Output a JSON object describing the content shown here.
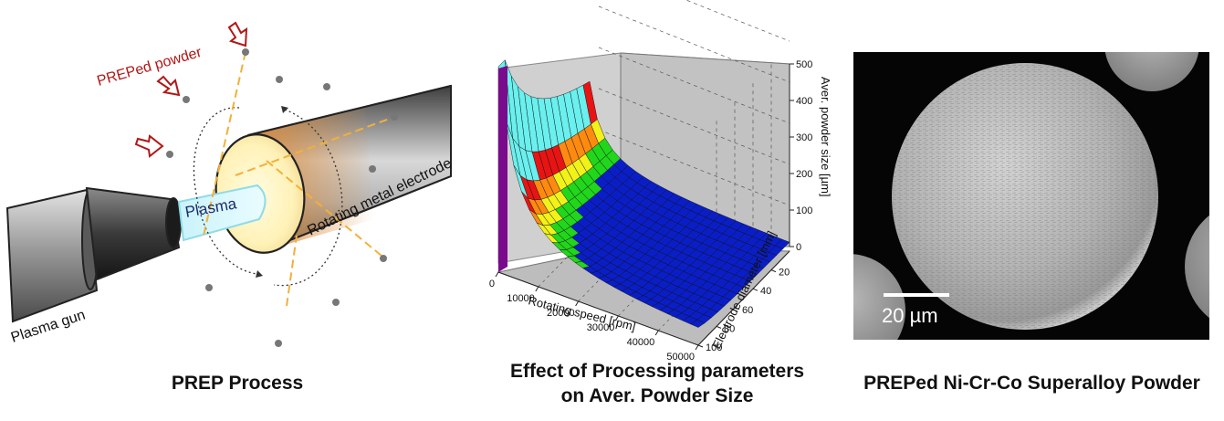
{
  "prep": {
    "caption": "PREP Process",
    "powder_label": "PREPed powder",
    "plasma_label": "Plasma",
    "electrode_label": "Rotating metal electrode",
    "gun_label": "Plasma gun",
    "colors": {
      "arrow": "#b01818",
      "jet": "#f2b03a",
      "powder_text": "#b01818"
    }
  },
  "surface": {
    "caption_line1": "Effect of Processing parameters",
    "caption_line2": "on Aver. Powder Size"
  },
  "sem": {
    "caption": "PREPed Ni-Cr-Co Superalloy Powder",
    "scale_label": "20 µm"
  },
  "chart_data": {
    "type": "surface3d",
    "title": "Effect of Processing parameters on Aver. Powder Size",
    "xlabel": "Rotating speed [rpm]",
    "ylabel": "Electrode diameter [mm]",
    "zlabel": "Aver. powder size [µm]",
    "x_ticks": [
      "0",
      "10000",
      "20000",
      "30000",
      "40000",
      "50000"
    ],
    "y_ticks": [
      "20",
      "40",
      "60",
      "80",
      "100"
    ],
    "z_ticks": [
      "0",
      "100",
      "200",
      "300",
      "400",
      "500"
    ],
    "xlim": [
      0,
      50000
    ],
    "ylim": [
      0,
      100
    ],
    "zlim": [
      0,
      500
    ],
    "color_bands": [
      {
        "from": 0,
        "to": 80,
        "color": "#0a1ec8"
      },
      {
        "from": 80,
        "to": 110,
        "color": "#22d61c"
      },
      {
        "from": 110,
        "to": 135,
        "color": "#f2f21a"
      },
      {
        "from": 135,
        "to": 165,
        "color": "#ff8a10"
      },
      {
        "from": 165,
        "to": 200,
        "color": "#e81414"
      },
      {
        "from": 200,
        "to": 500,
        "color": "#6af0ee"
      }
    ]
  }
}
